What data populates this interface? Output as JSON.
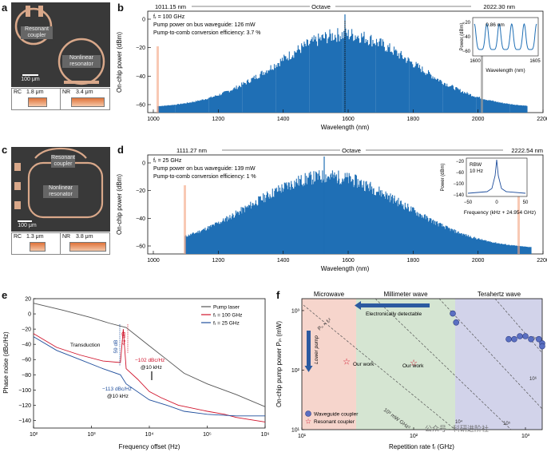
{
  "panels": {
    "a": "a",
    "b": "b",
    "c": "c",
    "d": "d",
    "e": "e",
    "f": "f"
  },
  "a": {
    "label_coupler": "Resonant coupler",
    "label_resonator": "Nonlinear resonator",
    "scale_bar": "100 μm",
    "rc_label": "RC",
    "rc_width": "1.8 μm",
    "nr_label": "NR",
    "nr_width": "3.4 μm"
  },
  "b": {
    "left_edge": "1011.15 nm",
    "octave": "Octave",
    "right_edge": "2022.30 nm",
    "fr": "fᵣ = 100 GHz",
    "pump_power": "Pump power on bus waveguide: 126 mW",
    "efficiency": "Pump-to-comb conversion efficiency: 3.7 %",
    "ylabel": "On-chip power (dBm)",
    "xlabel": "Wavelength (nm)",
    "yticks": [
      "0",
      "−20",
      "−40",
      "−60"
    ],
    "xticks": [
      "1000",
      "1200",
      "1400",
      "1600",
      "1800",
      "2000",
      "2200"
    ],
    "inset": {
      "spacing": "0.86 nm",
      "ylabel": "Power (dBm)",
      "xlabel": "Wavelength (nm)",
      "yticks": [
        "−20",
        "−40",
        "−60"
      ],
      "xticks": [
        "1600",
        "1605"
      ]
    }
  },
  "c": {
    "label_coupler": "Resonant coupler",
    "label_resonator": "Nonlinear resonator",
    "scale_bar": "100 μm",
    "rc_label": "RC",
    "rc_width": "1.3 μm",
    "nr_label": "NR",
    "nr_width": "3.8 μm"
  },
  "d": {
    "left_edge": "1111.27 nm",
    "octave": "Octave",
    "right_edge": "2222.54 nm",
    "fr": "fᵣ = 25 GHz",
    "pump_power": "Pump power on bus waveguide: 139 mW",
    "efficiency": "Pump-to-comb conversion efficiency: 1 %",
    "ylabel": "On-chip power (dBm)",
    "xlabel": "Wavelength (nm)",
    "yticks": [
      "0",
      "−20",
      "−40",
      "−60"
    ],
    "xticks": [
      "1000",
      "1200",
      "1400",
      "1600",
      "1800",
      "2000",
      "2200"
    ],
    "inset": {
      "rbw": "RBW",
      "rbw_value": "10 Hz",
      "ylabel": "Power (dBm)",
      "xlabel": "Frequency (kHz + 24.954 GHz)",
      "yticks": [
        "−20",
        "−60",
        "−100",
        "−140"
      ],
      "xticks": [
        "−50",
        "0",
        "50"
      ]
    }
  },
  "e": {
    "ylabel": "Phase noise (dBc/Hz)",
    "xlabel": "Frequency offset (Hz)",
    "yticks": [
      "20",
      "0",
      "−20",
      "−40",
      "−60",
      "−80",
      "−100",
      "−120",
      "−140"
    ],
    "xticks": [
      "10²",
      "10³",
      "10⁴",
      "10⁵",
      "10⁶"
    ],
    "legend": [
      "Pump laser",
      "fᵣ = 100 GHz",
      "fᵣ = 25 GHz"
    ],
    "transduction": "Transduction",
    "ann_59": "59 dB",
    "ann_41": "41 dB",
    "ann_102a": "−102 dBc/Hz",
    "ann_102b": "@10 kHz",
    "ann_113a": "−113 dBc/Hz",
    "ann_113b": "@10 kHz",
    "colors": {
      "pump": "#555555",
      "r100": "#d0142c",
      "r25": "#1f4e9c"
    }
  },
  "f": {
    "microwave": "Microwave",
    "millimeter": "Millimeter wave",
    "terahertz": "Terahertz wave",
    "electronically": "Electronically detectable",
    "lower_pump": "Lower pump",
    "p_fr": "Pₙ × fᵣ²",
    "our_work": "Our work",
    "line_label": "10³ mW GHz²",
    "contour_labels": [
      "10⁴",
      "10⁵",
      "10⁶",
      "10⁷"
    ],
    "ylabel": "On-chip pump power Pᵢₙ (mW)",
    "xlabel": "Repetition rate fᵣ (GHz)",
    "yticks": [
      "10³",
      "10²",
      "10¹"
    ],
    "xticks": [
      "10¹",
      "10²",
      "10³"
    ],
    "legend": [
      "Waveguide coupler",
      "Resonant coupler"
    ],
    "watermark": "公众号 · 科研进阶社"
  }
}
